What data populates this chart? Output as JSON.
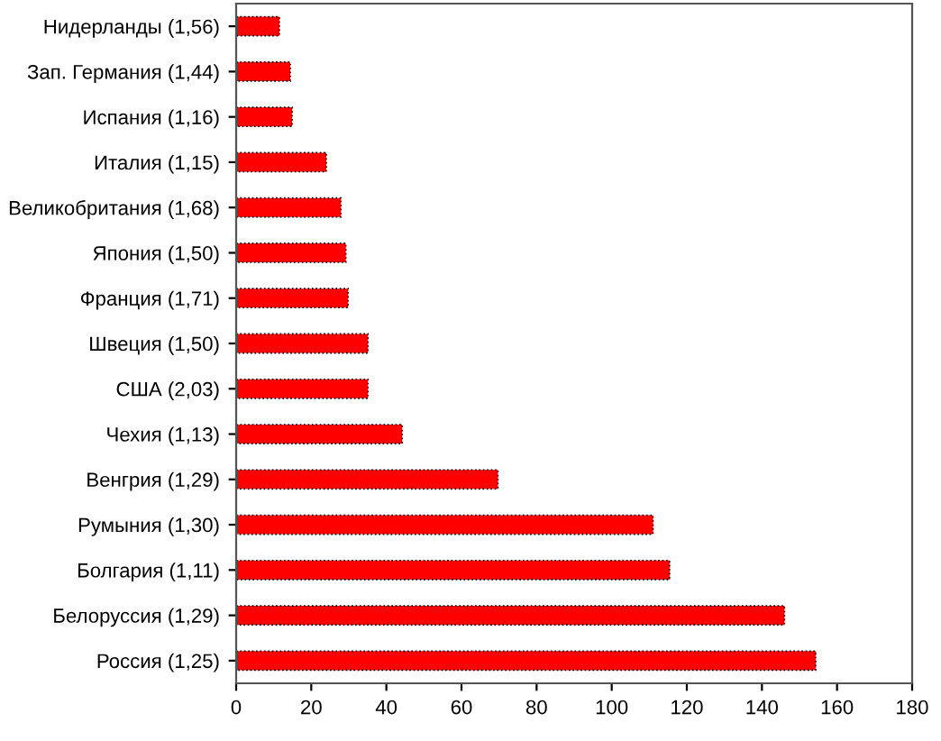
{
  "chart_data": {
    "type": "bar",
    "orientation": "horizontal",
    "categories": [
      "Нидерланды (1,56)",
      "Зап. Германия (1,44)",
      "Испания (1,16)",
      "Италия (1,15)",
      "Великобритания (1,68)",
      "Япония (1,50)",
      "Франция (1,71)",
      "Швеция (1,50)",
      "США (2,03)",
      "Чехия (1,13)",
      "Венгрия (1,29)",
      "Румыния (1,30)",
      "Болгария (1,11)",
      "Белоруссия (1,29)",
      "Россия (1,25)"
    ],
    "values": [
      11.5,
      14.4,
      14.9,
      24,
      27.9,
      29.2,
      29.8,
      35.1,
      35.1,
      44.2,
      69.7,
      111,
      115.4,
      146,
      154.3
    ],
    "color": "#ff0000",
    "xlim": [
      0,
      180
    ],
    "xticks": [
      0,
      20,
      40,
      60,
      80,
      100,
      120,
      140,
      160,
      180
    ],
    "grid": false
  }
}
